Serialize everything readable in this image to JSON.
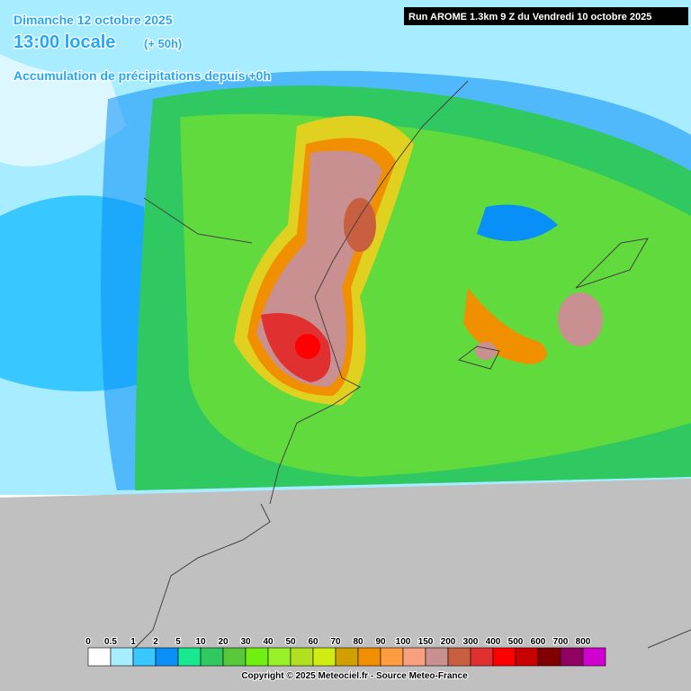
{
  "header": {
    "date": "Dimanche 12 octobre 2025",
    "time": "13:00 locale",
    "lead": "(+ 50h)",
    "field": "Accumulation de précipitations depuis +0h",
    "run": "Run AROME 1.3km 9 Z du Vendredi 10 octobre 2025"
  },
  "legend": {
    "items": [
      {
        "value": 0,
        "color": "#ffffff"
      },
      {
        "value": 0.5,
        "color": "#a8ecff"
      },
      {
        "value": 1,
        "color": "#38c8ff"
      },
      {
        "value": 2,
        "color": "#0890f8"
      },
      {
        "value": 5,
        "color": "#18e890"
      },
      {
        "value": 10,
        "color": "#30c860"
      },
      {
        "value": 20,
        "color": "#58c838"
      },
      {
        "value": 30,
        "color": "#70f010"
      },
      {
        "value": 40,
        "color": "#98f028"
      },
      {
        "value": 50,
        "color": "#b0e020"
      },
      {
        "value": 60,
        "color": "#d0ec10"
      },
      {
        "value": 70,
        "color": "#d0a000"
      },
      {
        "value": 80,
        "color": "#f09000"
      },
      {
        "value": 90,
        "color": "#ff9c40"
      },
      {
        "value": 100,
        "color": "#f8a080"
      },
      {
        "value": 150,
        "color": "#c89090"
      },
      {
        "value": 200,
        "color": "#c86040"
      },
      {
        "value": 300,
        "color": "#e03030"
      },
      {
        "value": 400,
        "color": "#ff0000"
      },
      {
        "value": 500,
        "color": "#c80000"
      },
      {
        "value": 600,
        "color": "#800000"
      },
      {
        "value": 700,
        "color": "#900060"
      },
      {
        "value": 800,
        "color": "#d000d0"
      }
    ]
  },
  "footer": "Copyright © 2025 Meteociel.fr - Source Meteo-France"
}
